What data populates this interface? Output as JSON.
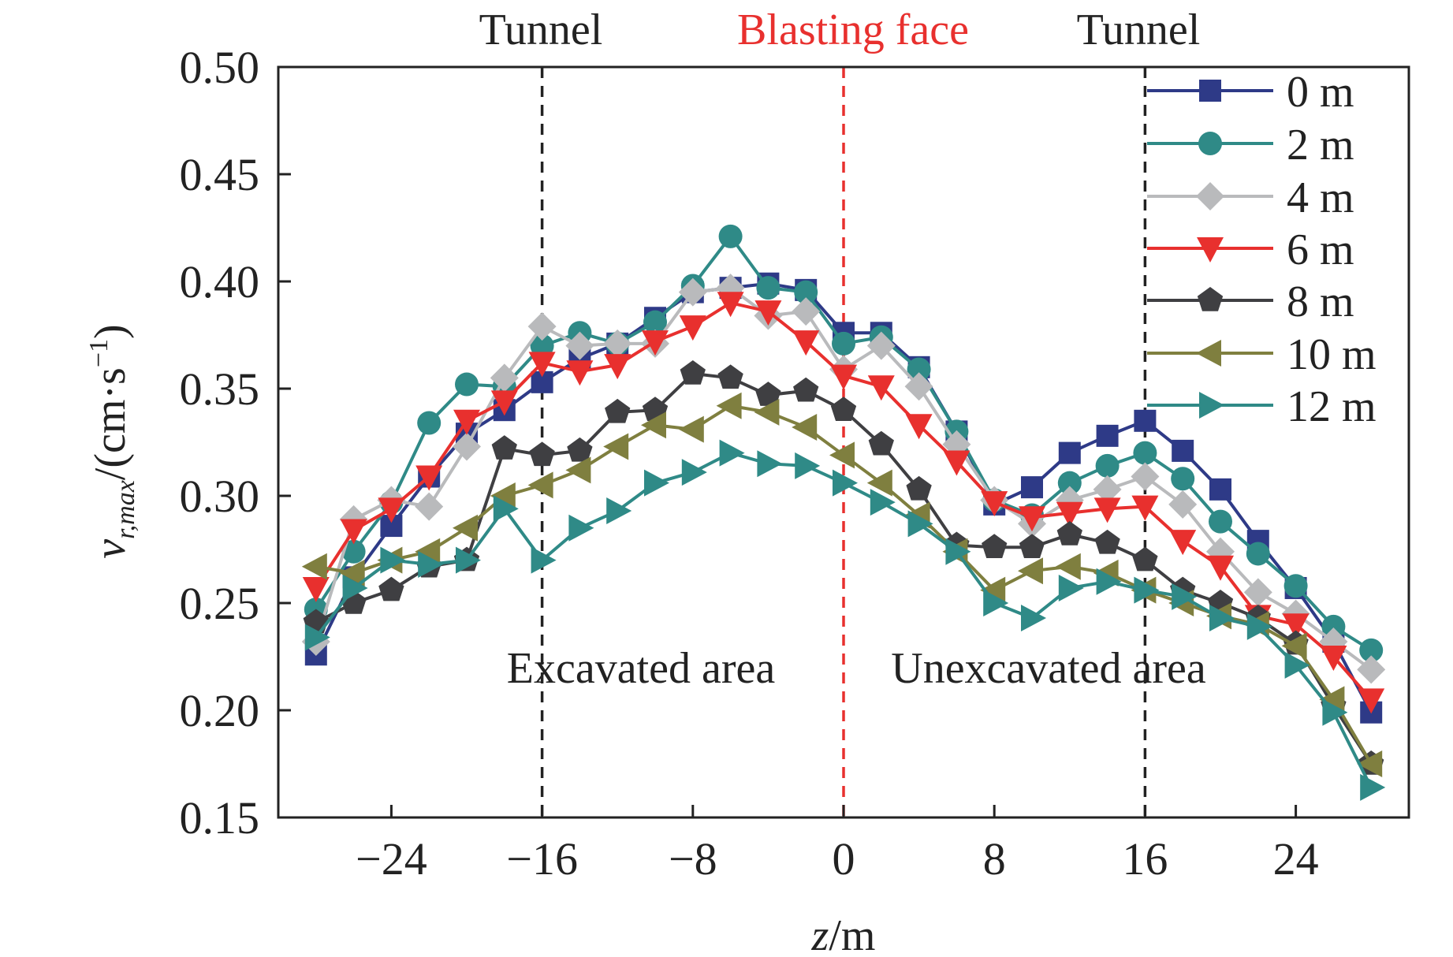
{
  "chart_data": {
    "type": "line",
    "xlabel_italic": "z",
    "xlabel_unit": "/m",
    "ylabel_var": "v",
    "ylabel_sub": "r,max",
    "ylabel_unit": "/(cm·s",
    "ylabel_exp": "−1",
    "ylabel_close": ")",
    "xlim": [
      -30,
      30
    ],
    "ylim": [
      0.15,
      0.5
    ],
    "xticks": [
      -24,
      -16,
      -8,
      0,
      8,
      16,
      24
    ],
    "xtick_labels": [
      "−24",
      "−16",
      "−8",
      "0",
      "8",
      "16",
      "24"
    ],
    "yticks": [
      0.15,
      0.2,
      0.25,
      0.3,
      0.35,
      0.4,
      0.45,
      0.5
    ],
    "ytick_labels": [
      "0.15",
      "0.20",
      "0.25",
      "0.30",
      "0.35",
      "0.40",
      "0.45",
      "0.50"
    ],
    "grid": false,
    "legend_position": "top-right",
    "annotations": {
      "tunnel_left": "Tunnel",
      "blasting_face": "Blasting face",
      "tunnel_right": "Tunnel",
      "excavated": "Excavated area",
      "unexcavated": "Unexcavated area"
    },
    "reference_lines": [
      {
        "x": -16,
        "color": "#222222"
      },
      {
        "x": 0,
        "color": "#e8302e"
      },
      {
        "x": 16,
        "color": "#222222"
      }
    ],
    "x": [
      -28,
      -26,
      -24,
      -22,
      -20,
      -18,
      -16,
      -14,
      -12,
      -10,
      -8,
      -6,
      -4,
      -2,
      0,
      2,
      4,
      6,
      8,
      10,
      12,
      14,
      16,
      18,
      20,
      22,
      24,
      26,
      28
    ],
    "series": [
      {
        "name": "0 m",
        "color": "#2e3a87",
        "marker": "square",
        "values": [
          0.226,
          0.262,
          0.286,
          0.309,
          0.329,
          0.34,
          0.353,
          0.364,
          0.371,
          0.383,
          0.395,
          0.397,
          0.399,
          0.396,
          0.376,
          0.376,
          0.36,
          0.33,
          0.296,
          0.304,
          0.32,
          0.328,
          0.335,
          0.321,
          0.303,
          0.279,
          0.257,
          0.232,
          0.199
        ]
      },
      {
        "name": "2 m",
        "color": "#2f8a87",
        "marker": "circle",
        "values": [
          0.247,
          0.274,
          0.297,
          0.334,
          0.352,
          0.351,
          0.37,
          0.376,
          0.371,
          0.381,
          0.398,
          0.421,
          0.397,
          0.395,
          0.371,
          0.374,
          0.359,
          0.33,
          0.298,
          0.291,
          0.306,
          0.314,
          0.32,
          0.308,
          0.288,
          0.273,
          0.258,
          0.239,
          0.228
        ]
      },
      {
        "name": "4 m",
        "color": "#b9babc",
        "marker": "diamond",
        "values": [
          0.232,
          0.289,
          0.298,
          0.295,
          0.323,
          0.355,
          0.379,
          0.37,
          0.371,
          0.371,
          0.395,
          0.397,
          0.384,
          0.386,
          0.359,
          0.37,
          0.351,
          0.324,
          0.298,
          0.287,
          0.298,
          0.303,
          0.309,
          0.296,
          0.274,
          0.255,
          0.245,
          0.232,
          0.219
        ]
      },
      {
        "name": "6 m",
        "color": "#e8302e",
        "marker": "triangle-down",
        "values": [
          0.257,
          0.284,
          0.294,
          0.309,
          0.335,
          0.344,
          0.362,
          0.358,
          0.361,
          0.372,
          0.379,
          0.39,
          0.386,
          0.372,
          0.356,
          0.351,
          0.333,
          0.316,
          0.297,
          0.29,
          0.292,
          0.294,
          0.295,
          0.279,
          0.267,
          0.244,
          0.24,
          0.225,
          0.205
        ]
      },
      {
        "name": "8 m",
        "color": "#3f3f42",
        "marker": "pentagon",
        "values": [
          0.241,
          0.25,
          0.256,
          0.267,
          0.27,
          0.322,
          0.319,
          0.321,
          0.339,
          0.34,
          0.357,
          0.355,
          0.347,
          0.349,
          0.34,
          0.324,
          0.303,
          0.277,
          0.276,
          0.276,
          0.282,
          0.278,
          0.27,
          0.256,
          0.25,
          0.243,
          0.231,
          0.202,
          0.175
        ]
      },
      {
        "name": "10 m",
        "color": "#7f7f3f",
        "marker": "triangle-left",
        "values": [
          0.267,
          0.264,
          0.27,
          0.274,
          0.285,
          0.3,
          0.305,
          0.312,
          0.323,
          0.333,
          0.331,
          0.342,
          0.339,
          0.332,
          0.319,
          0.306,
          0.291,
          0.274,
          0.256,
          0.265,
          0.267,
          0.264,
          0.256,
          0.25,
          0.244,
          0.24,
          0.23,
          0.205,
          0.175
        ]
      },
      {
        "name": "12 m",
        "color": "#2f8a87",
        "marker": "triangle-right",
        "values": [
          0.234,
          0.257,
          0.27,
          0.268,
          0.27,
          0.294,
          0.27,
          0.285,
          0.293,
          0.306,
          0.311,
          0.32,
          0.315,
          0.314,
          0.306,
          0.297,
          0.287,
          0.274,
          0.25,
          0.243,
          0.257,
          0.26,
          0.256,
          0.253,
          0.243,
          0.239,
          0.221,
          0.199,
          0.164
        ]
      }
    ]
  }
}
